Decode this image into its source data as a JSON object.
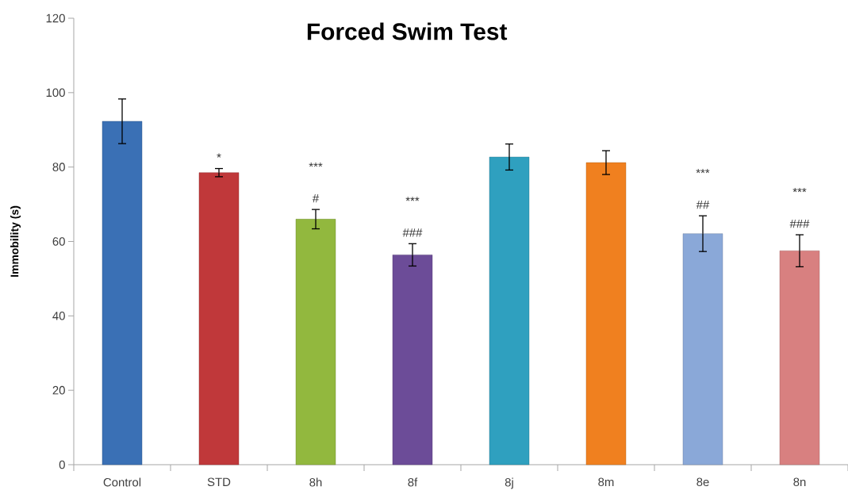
{
  "chart_data": {
    "type": "bar",
    "title": "Forced Swim Test",
    "ylabel": "Immobility (s)",
    "categories": [
      "Control",
      "STD",
      "8h",
      "8f",
      "8j",
      "8m",
      "8e",
      "8n"
    ],
    "values": [
      92.3,
      78.5,
      66,
      56.4,
      82.7,
      81.2,
      62.1,
      57.5
    ],
    "errors": [
      6,
      1.1,
      2.6,
      3,
      3.5,
      3.2,
      4.8,
      4.3
    ],
    "colors": [
      "#3a70b5",
      "#c0383a",
      "#92b83e",
      "#6c4c98",
      "#2fa0bf",
      "#f0801f",
      "#8aa8d8",
      "#d88080"
    ],
    "ylim": [
      0,
      120
    ],
    "yticks": [
      0,
      20,
      40,
      60,
      80,
      100,
      120
    ],
    "grid": false,
    "annotations": [
      "*",
      "***",
      "#",
      "***",
      "###",
      "***",
      "##",
      "***",
      "###"
    ]
  }
}
